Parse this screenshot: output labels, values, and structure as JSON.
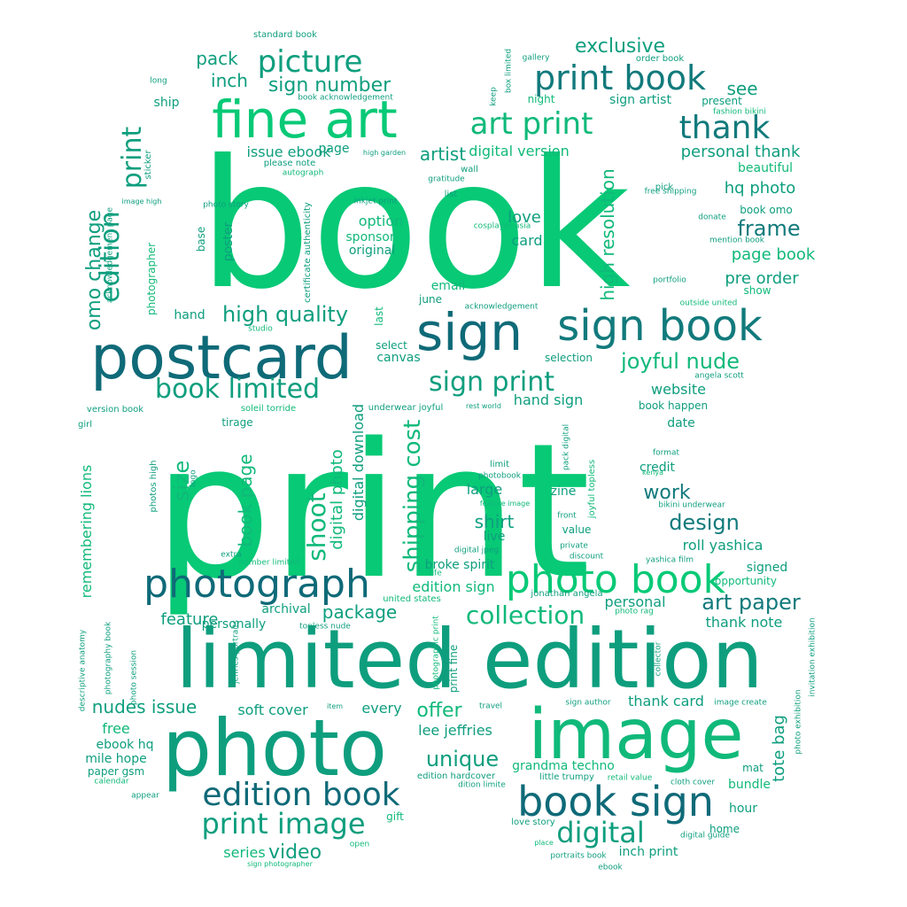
{
  "colors": {
    "background": "#ffffff",
    "bright_green": "#07c976",
    "green": "#10b97a",
    "teal": "#0e9e7e",
    "dark_teal": "#127a7c",
    "deep_teal": "#0f6a78"
  },
  "words": [
    {
      "text": "book",
      "color": "bright_green"
    },
    {
      "text": "print",
      "color": "bright_green"
    },
    {
      "text": "limited edition",
      "color": "teal"
    },
    {
      "text": "photo",
      "color": "teal"
    },
    {
      "text": "image",
      "color": "green"
    },
    {
      "text": "postcard",
      "color": "deep_teal"
    },
    {
      "text": "fine art",
      "color": "bright_green"
    },
    {
      "text": "sign",
      "color": "deep_teal"
    },
    {
      "text": "sign book",
      "color": "dark_teal"
    },
    {
      "text": "photograph",
      "color": "deep_teal"
    },
    {
      "text": "photo book",
      "color": "bright_green"
    },
    {
      "text": "book sign",
      "color": "deep_teal"
    },
    {
      "text": "edition book",
      "color": "deep_teal"
    },
    {
      "text": "print book",
      "color": "dark_teal"
    },
    {
      "text": "art print",
      "color": "green"
    },
    {
      "text": "thank",
      "color": "dark_teal"
    },
    {
      "text": "picture",
      "color": "teal"
    },
    {
      "text": "book limited",
      "color": "teal"
    },
    {
      "text": "sign print",
      "color": "teal"
    },
    {
      "text": "print image",
      "color": "teal"
    },
    {
      "text": "digital",
      "color": "teal"
    },
    {
      "text": "collection",
      "color": "green"
    },
    {
      "text": "print",
      "color": "teal"
    },
    {
      "text": "edition",
      "color": "teal"
    },
    {
      "text": "omo change",
      "color": "teal"
    },
    {
      "text": "shoot",
      "color": "green"
    },
    {
      "text": "shipping cost",
      "color": "green"
    },
    {
      "text": "high resolution",
      "color": "green"
    },
    {
      "text": "frame",
      "color": "dark_teal"
    },
    {
      "text": "joyful nude",
      "color": "green"
    },
    {
      "text": "high quality",
      "color": "teal"
    },
    {
      "text": "art paper",
      "color": "dark_teal"
    },
    {
      "text": "design",
      "color": "dark_teal"
    },
    {
      "text": "exclusive",
      "color": "teal"
    },
    {
      "text": "sign number",
      "color": "teal"
    },
    {
      "text": "unique",
      "color": "teal"
    },
    {
      "text": "offer",
      "color": "green"
    },
    {
      "text": "nudes issue",
      "color": "teal"
    },
    {
      "text": "package",
      "color": "teal"
    },
    {
      "text": "work",
      "color": "dark_teal"
    },
    {
      "text": "video",
      "color": "teal"
    },
    {
      "text": "series",
      "color": "green"
    },
    {
      "text": "tote bag",
      "color": "teal"
    },
    {
      "text": "size",
      "color": "green"
    },
    {
      "text": "book page",
      "color": "green"
    },
    {
      "text": "digital photo",
      "color": "green"
    },
    {
      "text": "digital download",
      "color": "teal"
    },
    {
      "text": "pack",
      "color": "teal"
    },
    {
      "text": "inch",
      "color": "teal"
    },
    {
      "text": "see",
      "color": "teal"
    },
    {
      "text": "personal thank",
      "color": "teal"
    },
    {
      "text": "hq photo",
      "color": "teal"
    },
    {
      "text": "page book",
      "color": "green"
    },
    {
      "text": "pre order",
      "color": "teal"
    },
    {
      "text": "artist",
      "color": "teal"
    },
    {
      "text": "digital version",
      "color": "green"
    },
    {
      "text": "issue ebook",
      "color": "teal"
    },
    {
      "text": "love",
      "color": "teal"
    },
    {
      "text": "card",
      "color": "teal"
    },
    {
      "text": "option",
      "color": "green"
    },
    {
      "text": "sponsor",
      "color": "green"
    },
    {
      "text": "original",
      "color": "teal"
    },
    {
      "text": "website",
      "color": "teal"
    },
    {
      "text": "hand sign",
      "color": "teal"
    },
    {
      "text": "shirt",
      "color": "teal"
    },
    {
      "text": "large",
      "color": "teal"
    },
    {
      "text": "live",
      "color": "teal"
    },
    {
      "text": "credit",
      "color": "teal"
    },
    {
      "text": "roll yashica",
      "color": "teal"
    },
    {
      "text": "feature",
      "color": "teal"
    },
    {
      "text": "personal",
      "color": "teal"
    },
    {
      "text": "thank note",
      "color": "teal"
    },
    {
      "text": "edition sign",
      "color": "green"
    },
    {
      "text": "soft cover",
      "color": "teal"
    },
    {
      "text": "every",
      "color": "teal"
    },
    {
      "text": "lee jeffries",
      "color": "teal"
    },
    {
      "text": "free",
      "color": "green"
    },
    {
      "text": "thank card",
      "color": "teal"
    },
    {
      "text": "grandma techno",
      "color": "green"
    },
    {
      "text": "inch print",
      "color": "teal"
    },
    {
      "text": "beautiful",
      "color": "green"
    },
    {
      "text": "remembering lions",
      "color": "green"
    },
    {
      "text": "photographer",
      "color": "green"
    },
    {
      "text": "poster",
      "color": "teal"
    },
    {
      "text": "base",
      "color": "teal"
    },
    {
      "text": "hand",
      "color": "teal"
    },
    {
      "text": "ship",
      "color": "teal"
    },
    {
      "text": "page",
      "color": "teal"
    },
    {
      "text": "zine",
      "color": "teal"
    },
    {
      "text": "bundle",
      "color": "green"
    },
    {
      "text": "hour",
      "color": "teal"
    },
    {
      "text": "home",
      "color": "teal"
    },
    {
      "text": "mat",
      "color": "teal"
    },
    {
      "text": "archival",
      "color": "teal"
    },
    {
      "text": "personally",
      "color": "teal"
    },
    {
      "text": "canvas",
      "color": "teal"
    },
    {
      "text": "select",
      "color": "teal"
    },
    {
      "text": "selection",
      "color": "teal"
    },
    {
      "text": "email",
      "color": "green"
    },
    {
      "text": "june",
      "color": "teal"
    },
    {
      "text": "broke spirit",
      "color": "teal"
    },
    {
      "text": "signed",
      "color": "teal"
    },
    {
      "text": "opportunity",
      "color": "green"
    },
    {
      "text": "date",
      "color": "teal"
    },
    {
      "text": "book happen",
      "color": "teal"
    },
    {
      "text": "value",
      "color": "teal"
    },
    {
      "text": "standard book",
      "color": "teal"
    },
    {
      "text": "book acknowledgement",
      "color": "teal"
    },
    {
      "text": "please note",
      "color": "teal"
    },
    {
      "text": "high garden",
      "color": "teal"
    },
    {
      "text": "wall",
      "color": "teal"
    },
    {
      "text": "gratitude",
      "color": "teal"
    },
    {
      "text": "list",
      "color": "teal"
    },
    {
      "text": "inkjet print",
      "color": "teal"
    },
    {
      "text": "cosplayer asia",
      "color": "green"
    },
    {
      "text": "acknowledgement",
      "color": "teal"
    },
    {
      "text": "photo story",
      "color": "teal"
    },
    {
      "text": "autograph",
      "color": "green"
    },
    {
      "text": "certificate authenticity",
      "color": "teal"
    },
    {
      "text": "sticker",
      "color": "teal"
    },
    {
      "text": "image high",
      "color": "teal"
    },
    {
      "text": "acknowledgement page",
      "color": "teal"
    },
    {
      "text": "long",
      "color": "teal"
    },
    {
      "text": "gallery",
      "color": "teal"
    },
    {
      "text": "order book",
      "color": "teal"
    },
    {
      "text": "box limited",
      "color": "teal"
    },
    {
      "text": "keep",
      "color": "teal"
    },
    {
      "text": "night",
      "color": "green"
    },
    {
      "text": "sign artist",
      "color": "teal"
    },
    {
      "text": "present",
      "color": "teal"
    },
    {
      "text": "fashion bikini",
      "color": "green"
    },
    {
      "text": "free shipping",
      "color": "teal"
    },
    {
      "text": "pick",
      "color": "teal"
    },
    {
      "text": "book omo",
      "color": "teal"
    },
    {
      "text": "donate",
      "color": "teal"
    },
    {
      "text": "mention book",
      "color": "teal"
    },
    {
      "text": "portfolio",
      "color": "teal"
    },
    {
      "text": "show",
      "color": "green"
    },
    {
      "text": "outside united",
      "color": "green"
    },
    {
      "text": "angela scott",
      "color": "teal"
    },
    {
      "text": "last",
      "color": "green"
    },
    {
      "text": "studio",
      "color": "green"
    },
    {
      "text": "version book",
      "color": "teal"
    },
    {
      "text": "soleil torride",
      "color": "green"
    },
    {
      "text": "underwear joyful",
      "color": "teal"
    },
    {
      "text": "rest world",
      "color": "teal"
    },
    {
      "text": "girl",
      "color": "teal"
    },
    {
      "text": "tirage",
      "color": "teal"
    },
    {
      "text": "photos high",
      "color": "teal"
    },
    {
      "text": "logo",
      "color": "teal"
    },
    {
      "text": "limit",
      "color": "teal"
    },
    {
      "text": "photobook",
      "color": "teal"
    },
    {
      "text": "feature image",
      "color": "green"
    },
    {
      "text": "pack digital",
      "color": "teal"
    },
    {
      "text": "joyful topless",
      "color": "green"
    },
    {
      "text": "format",
      "color": "teal"
    },
    {
      "text": "kenya",
      "color": "green"
    },
    {
      "text": "bikini underwear",
      "color": "teal"
    },
    {
      "text": "front",
      "color": "teal"
    },
    {
      "text": "private",
      "color": "teal"
    },
    {
      "text": "discount",
      "color": "teal"
    },
    {
      "text": "digital jpeg",
      "color": "teal"
    },
    {
      "text": "yashica film",
      "color": "teal"
    },
    {
      "text": "extra",
      "color": "teal"
    },
    {
      "text": "number limited",
      "color": "green"
    },
    {
      "text": "life",
      "color": "green"
    },
    {
      "text": "united states",
      "color": "green"
    },
    {
      "text": "jonathan angela",
      "color": "teal"
    },
    {
      "text": "photo rag",
      "color": "green"
    },
    {
      "text": "topless nude",
      "color": "teal"
    },
    {
      "text": "photography book",
      "color": "teal"
    },
    {
      "text": "descriptive anatomy",
      "color": "teal"
    },
    {
      "text": "photo session",
      "color": "teal"
    },
    {
      "text": "jeffries portraits",
      "color": "teal"
    },
    {
      "text": "photographic print",
      "color": "green"
    },
    {
      "text": "print fine",
      "color": "teal"
    },
    {
      "text": "collector",
      "color": "teal"
    },
    {
      "text": "invitation exhibition",
      "color": "teal"
    },
    {
      "text": "photo exhibition",
      "color": "teal"
    },
    {
      "text": "image create",
      "color": "teal"
    },
    {
      "text": "sign author",
      "color": "teal"
    },
    {
      "text": "item",
      "color": "teal"
    },
    {
      "text": "travel",
      "color": "teal"
    },
    {
      "text": "ebook hq",
      "color": "teal"
    },
    {
      "text": "mile hope",
      "color": "teal"
    },
    {
      "text": "paper gsm",
      "color": "teal"
    },
    {
      "text": "calendar",
      "color": "green"
    },
    {
      "text": "appear",
      "color": "teal"
    },
    {
      "text": "edition hardcover",
      "color": "teal"
    },
    {
      "text": "dition limite",
      "color": "teal"
    },
    {
      "text": "little trumpy",
      "color": "teal"
    },
    {
      "text": "retail value",
      "color": "green"
    },
    {
      "text": "cloth cover",
      "color": "teal"
    },
    {
      "text": "gift",
      "color": "green"
    },
    {
      "text": "love story",
      "color": "teal"
    },
    {
      "text": "place",
      "color": "green"
    },
    {
      "text": "portraits book",
      "color": "teal"
    },
    {
      "text": "ebook",
      "color": "teal"
    },
    {
      "text": "digital guide",
      "color": "teal"
    },
    {
      "text": "open",
      "color": "green"
    },
    {
      "text": "sign photographer",
      "color": "green"
    }
  ]
}
